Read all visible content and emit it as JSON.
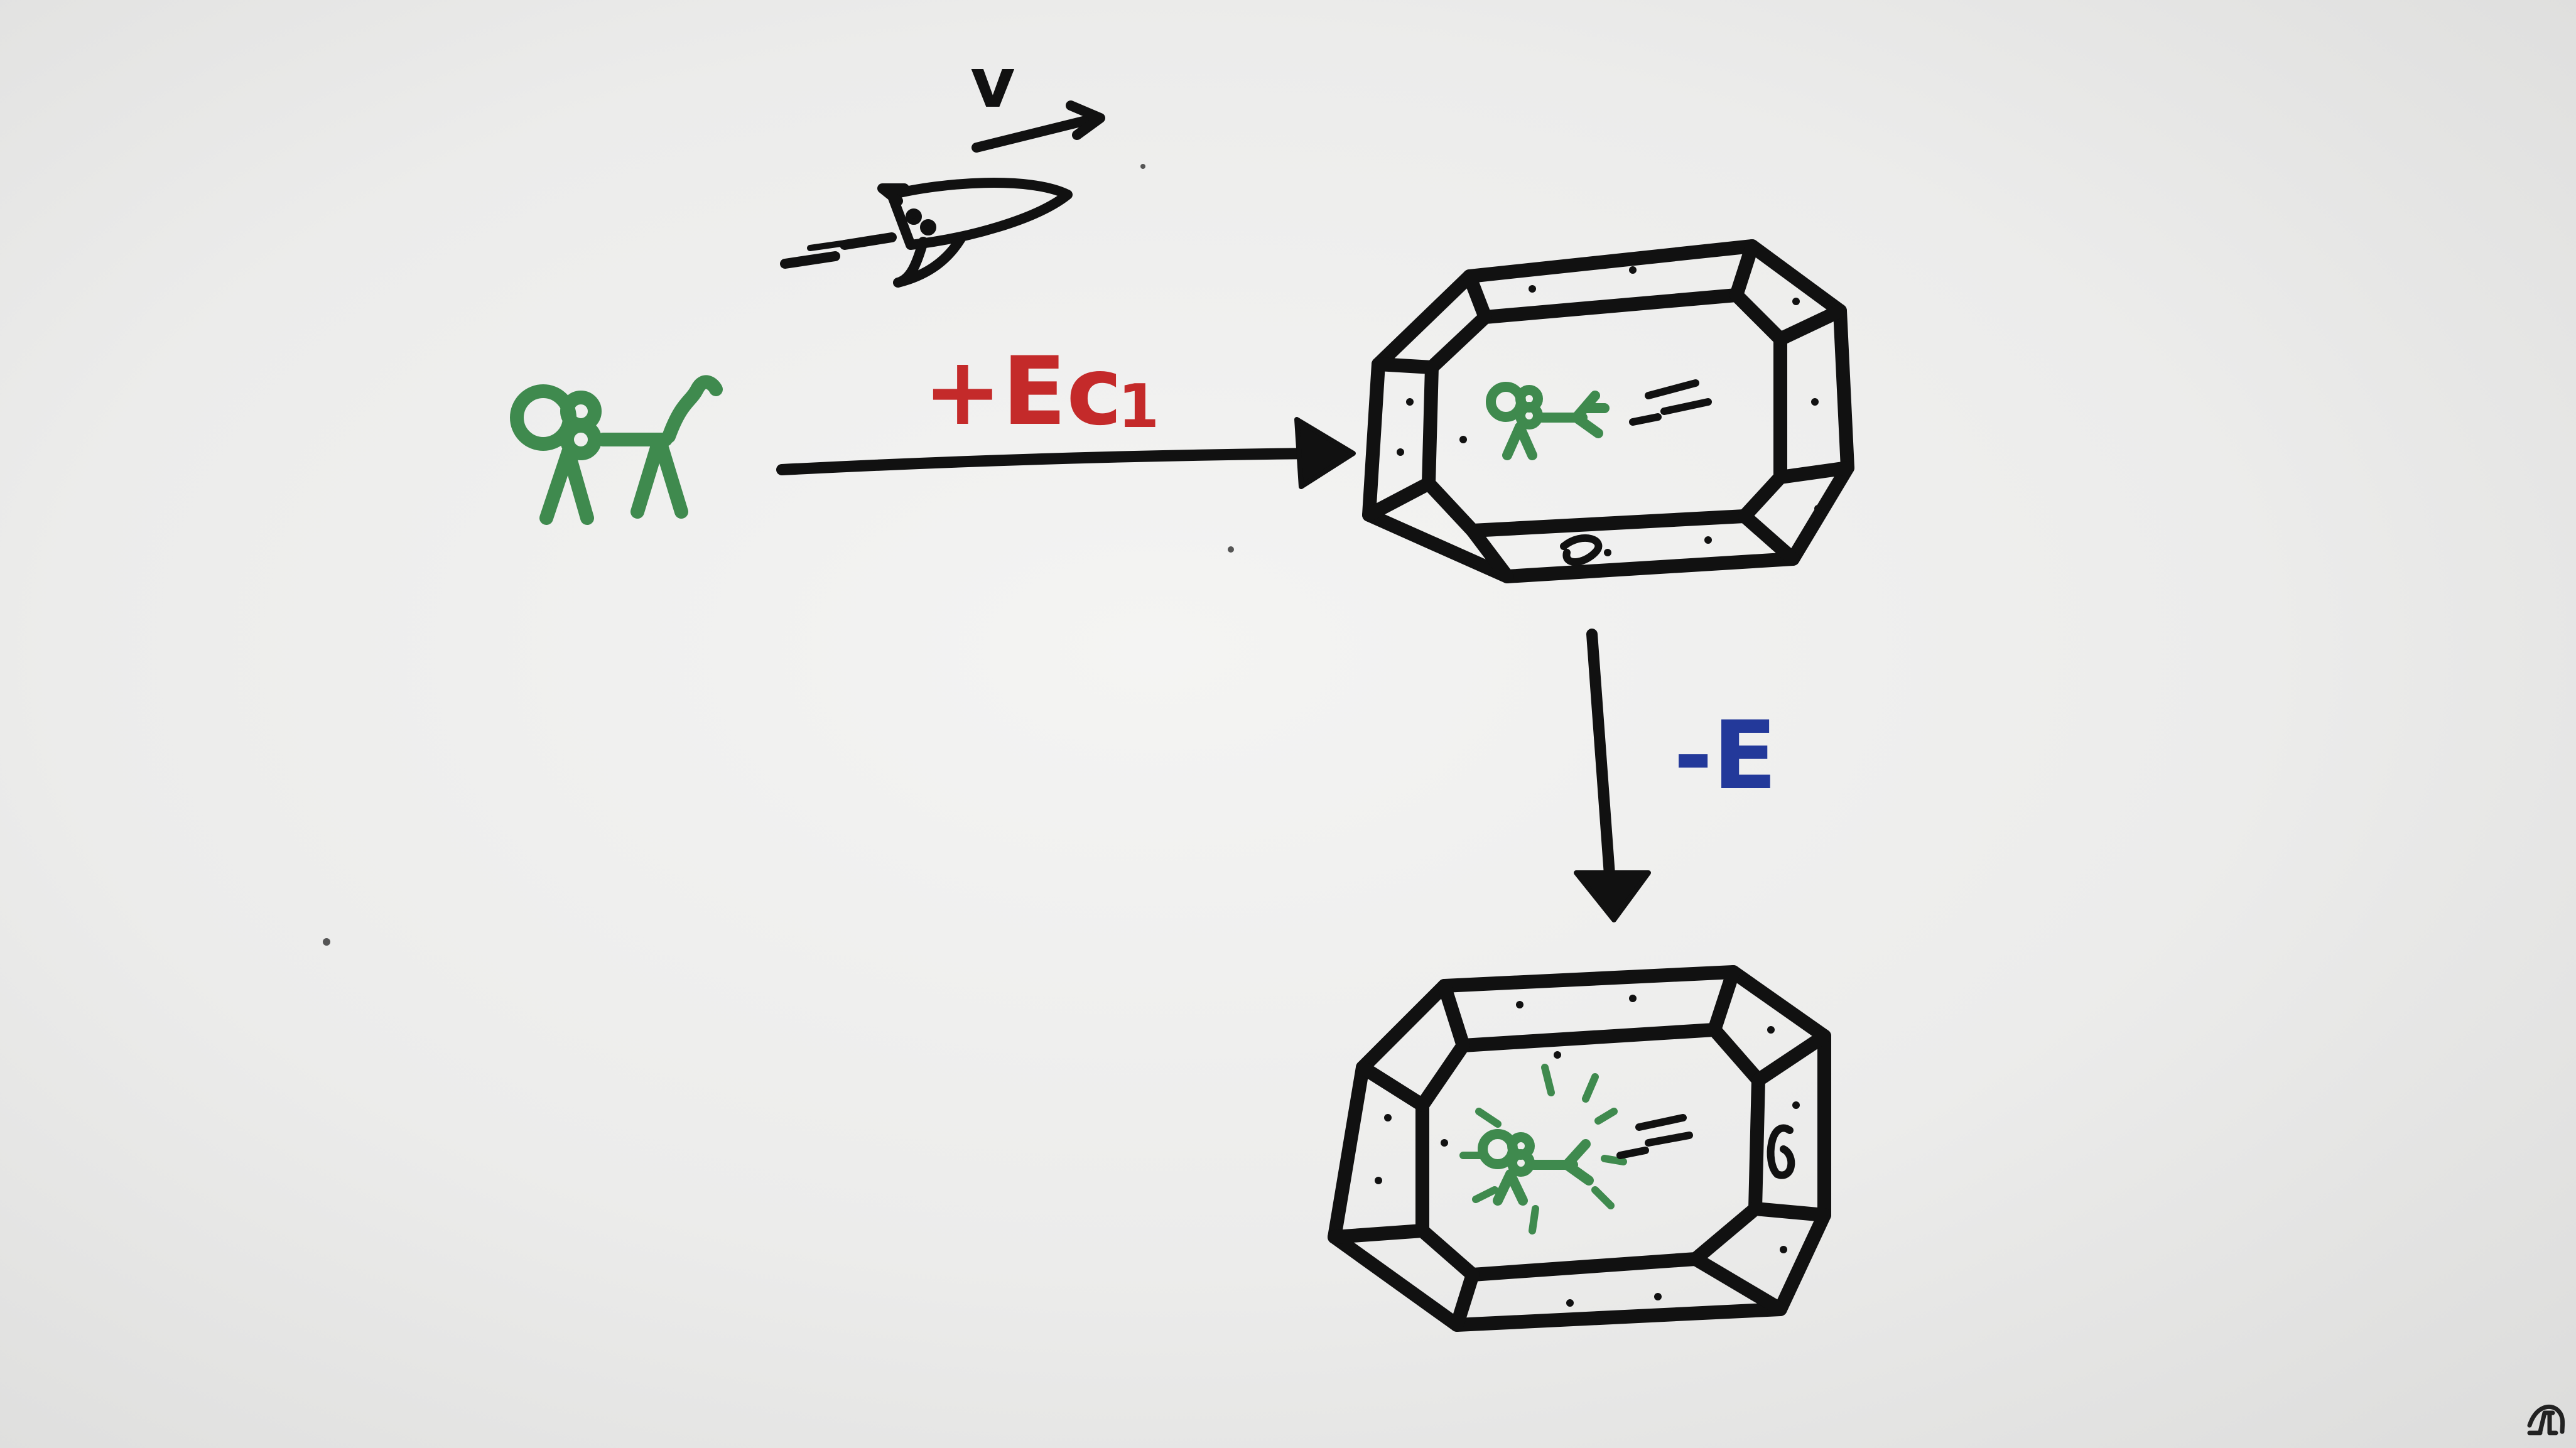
{
  "labels": {
    "energy_in": "+Ec",
    "energy_in_sub": "1",
    "energy_out": "-E",
    "velocity_symbol": "v"
  },
  "colors": {
    "ink": "#111111",
    "green": "#3f8a4e",
    "red": "#c42a2a",
    "blue": "#23399a",
    "background": "#ececeb"
  },
  "icons": {
    "mascot": "stick-cat-icon",
    "rocket": "rocket-icon",
    "channel_logo": "fl-logo-icon"
  }
}
